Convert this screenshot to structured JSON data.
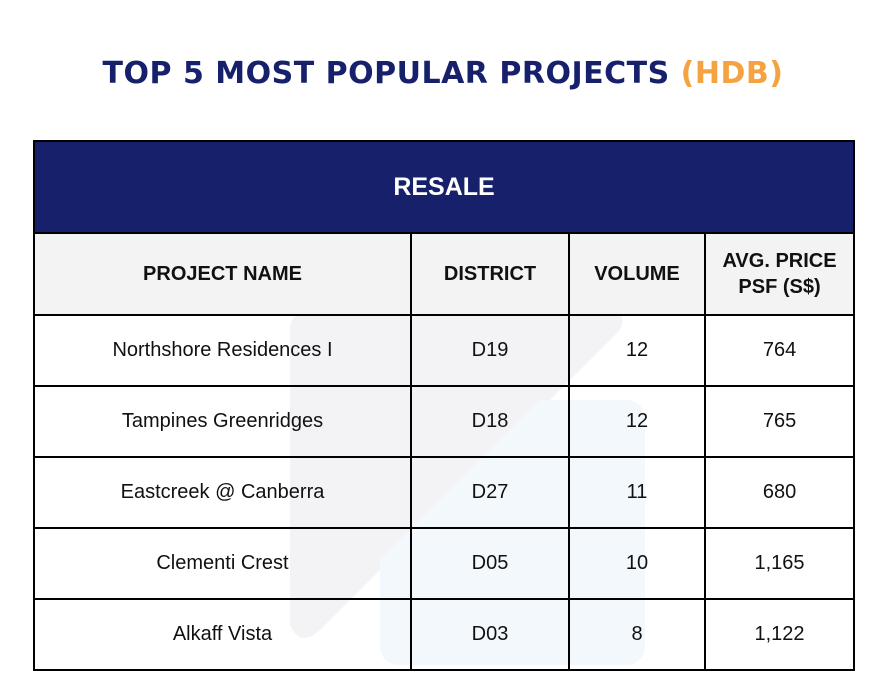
{
  "title": {
    "main": "TOP 5 MOST POPULAR PROJECTS",
    "accent": "(HDB)"
  },
  "table": {
    "band": "RESALE",
    "headers": [
      "PROJECT NAME",
      "DISTRICT",
      "VOLUME",
      "AVG. PRICE PSF (S$)"
    ],
    "rows": [
      [
        "Northshore Residences I",
        "D19",
        "12",
        "764"
      ],
      [
        "Tampines Greenridges",
        "D18",
        "12",
        "765"
      ],
      [
        "Eastcreek @ Canberra",
        "D27",
        "11",
        "680"
      ],
      [
        "Clementi Crest",
        "D05",
        "10",
        "1,165"
      ],
      [
        "Alkaff Vista",
        "D03",
        "8",
        "1,122"
      ]
    ]
  },
  "colors": {
    "navy": "#17206a",
    "orange": "#f4a340"
  }
}
